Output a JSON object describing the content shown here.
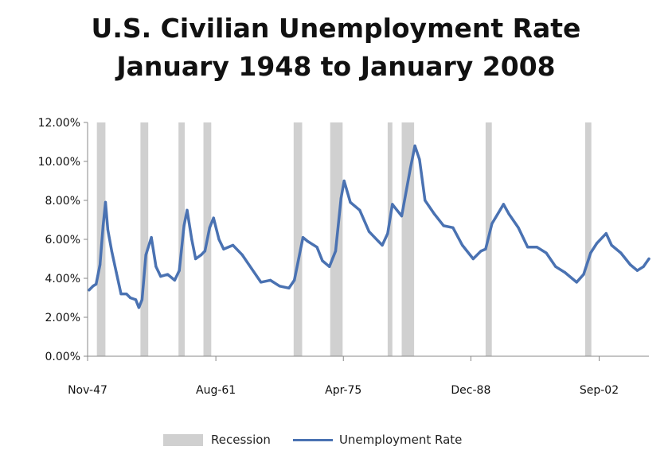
{
  "chart_data": {
    "type": "line",
    "title": "U.S. Civilian Unemployment Rate\nJanuary 1948 to January 2008",
    "title_lines": [
      "U.S. Civilian Unemployment Rate",
      "January 1948 to January 2008"
    ],
    "xlabel": "",
    "ylabel": "",
    "x_range": [
      "1947-11",
      "2008-01"
    ],
    "x_ticks": [
      "Nov-47",
      "Aug-61",
      "Apr-75",
      "Dec-88",
      "Sep-02"
    ],
    "x_tick_dates": [
      "1947-11",
      "1961-08",
      "1975-04",
      "1988-12",
      "2002-09"
    ],
    "y_ticks": [
      "0.00%",
      "2.00%",
      "4.00%",
      "6.00%",
      "8.00%",
      "10.00%",
      "12.00%"
    ],
    "ylim": [
      0,
      12
    ],
    "grid": false,
    "legend_position": "bottom",
    "series": [
      {
        "name": "Unemployment Rate",
        "color": "#4a72b2",
        "points": [
          [
            "1948-01",
            3.4
          ],
          [
            "1948-06",
            3.6
          ],
          [
            "1948-10",
            3.7
          ],
          [
            "1949-03",
            4.7
          ],
          [
            "1949-07",
            6.7
          ],
          [
            "1949-10",
            7.9
          ],
          [
            "1950-01",
            6.5
          ],
          [
            "1950-06",
            5.4
          ],
          [
            "1950-12",
            4.3
          ],
          [
            "1951-06",
            3.2
          ],
          [
            "1952-01",
            3.2
          ],
          [
            "1952-06",
            3.0
          ],
          [
            "1953-01",
            2.9
          ],
          [
            "1953-05",
            2.5
          ],
          [
            "1953-09",
            2.9
          ],
          [
            "1954-02",
            5.2
          ],
          [
            "1954-09",
            6.1
          ],
          [
            "1955-03",
            4.6
          ],
          [
            "1955-09",
            4.1
          ],
          [
            "1956-06",
            4.2
          ],
          [
            "1957-03",
            3.9
          ],
          [
            "1957-09",
            4.4
          ],
          [
            "1958-03",
            6.7
          ],
          [
            "1958-07",
            7.5
          ],
          [
            "1959-01",
            6.0
          ],
          [
            "1959-06",
            5.0
          ],
          [
            "1960-01",
            5.2
          ],
          [
            "1960-06",
            5.4
          ],
          [
            "1960-12",
            6.6
          ],
          [
            "1961-05",
            7.1
          ],
          [
            "1961-12",
            6.0
          ],
          [
            "1962-06",
            5.5
          ],
          [
            "1963-06",
            5.7
          ],
          [
            "1964-06",
            5.2
          ],
          [
            "1965-06",
            4.5
          ],
          [
            "1966-06",
            3.8
          ],
          [
            "1967-06",
            3.9
          ],
          [
            "1968-06",
            3.6
          ],
          [
            "1969-06",
            3.5
          ],
          [
            "1970-01",
            3.9
          ],
          [
            "1970-12",
            6.1
          ],
          [
            "1971-06",
            5.9
          ],
          [
            "1972-06",
            5.6
          ],
          [
            "1973-01",
            4.9
          ],
          [
            "1973-10",
            4.6
          ],
          [
            "1974-06",
            5.4
          ],
          [
            "1975-01",
            8.1
          ],
          [
            "1975-05",
            9.0
          ],
          [
            "1976-01",
            7.9
          ],
          [
            "1977-01",
            7.5
          ],
          [
            "1978-01",
            6.4
          ],
          [
            "1979-01",
            5.9
          ],
          [
            "1979-06",
            5.7
          ],
          [
            "1980-01",
            6.3
          ],
          [
            "1980-07",
            7.8
          ],
          [
            "1981-01",
            7.5
          ],
          [
            "1981-07",
            7.2
          ],
          [
            "1982-06",
            9.6
          ],
          [
            "1982-12",
            10.8
          ],
          [
            "1983-06",
            10.1
          ],
          [
            "1984-01",
            8.0
          ],
          [
            "1985-01",
            7.3
          ],
          [
            "1986-01",
            6.7
          ],
          [
            "1987-01",
            6.6
          ],
          [
            "1988-01",
            5.7
          ],
          [
            "1989-03",
            5.0
          ],
          [
            "1990-01",
            5.4
          ],
          [
            "1990-07",
            5.5
          ],
          [
            "1991-03",
            6.8
          ],
          [
            "1992-06",
            7.8
          ],
          [
            "1993-01",
            7.3
          ],
          [
            "1994-01",
            6.6
          ],
          [
            "1995-01",
            5.6
          ],
          [
            "1996-01",
            5.6
          ],
          [
            "1997-01",
            5.3
          ],
          [
            "1998-01",
            4.6
          ],
          [
            "1999-01",
            4.3
          ],
          [
            "2000-04",
            3.8
          ],
          [
            "2001-01",
            4.2
          ],
          [
            "2001-10",
            5.3
          ],
          [
            "2002-06",
            5.8
          ],
          [
            "2003-06",
            6.3
          ],
          [
            "2004-01",
            5.7
          ],
          [
            "2005-01",
            5.3
          ],
          [
            "2006-01",
            4.7
          ],
          [
            "2006-10",
            4.4
          ],
          [
            "2007-06",
            4.6
          ],
          [
            "2008-01",
            5.0
          ]
        ]
      }
    ],
    "shaded": {
      "name": "Recession",
      "color": "#d0d0d0",
      "periods": [
        [
          "1948-11",
          "1949-10"
        ],
        [
          "1953-07",
          "1954-05"
        ],
        [
          "1957-08",
          "1958-04"
        ],
        [
          "1960-04",
          "1961-02"
        ],
        [
          "1969-12",
          "1970-11"
        ],
        [
          "1973-11",
          "1975-03"
        ],
        [
          "1980-01",
          "1980-07"
        ],
        [
          "1981-07",
          "1982-11"
        ],
        [
          "1990-07",
          "1991-03"
        ],
        [
          "2001-03",
          "2001-11"
        ]
      ]
    }
  },
  "legend": {
    "recession_label": "Recession",
    "line_label": "Unemployment Rate"
  }
}
